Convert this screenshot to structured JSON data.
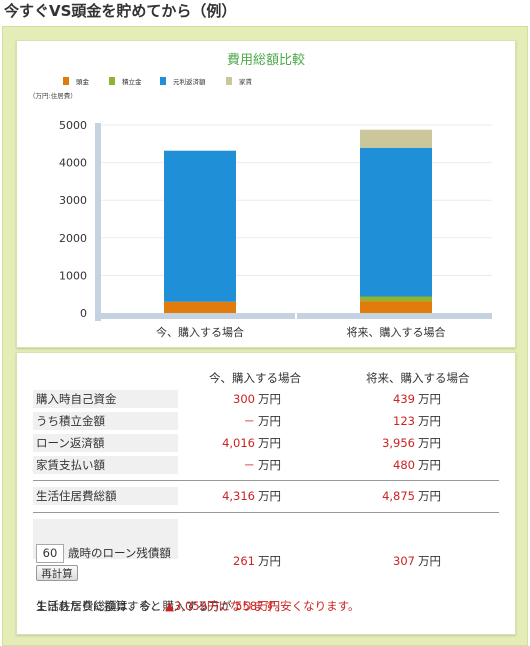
{
  "page_title": "今すぐVS頭金を貯めてから（例）",
  "colors": {
    "downpayment": "#e07b0c",
    "savings": "#8db530",
    "loan": "#1f90d8",
    "rent": "#cbc79a",
    "accent_red": "#cc2222"
  },
  "chart_data": {
    "type": "bar",
    "title": "費用総額比較",
    "ylabel": "（万円:住居費）",
    "xlabel": "",
    "categories": [
      "今、購入する場合",
      "将来、購入する場合"
    ],
    "ylim": [
      0,
      5000
    ],
    "yticks": [
      0,
      1000,
      2000,
      3000,
      4000,
      5000
    ],
    "legend_position": "top-left",
    "stacked": true,
    "series": [
      {
        "name": "頭金",
        "color": "#e07b0c",
        "values": [
          300,
          316
        ]
      },
      {
        "name": "積立金",
        "color": "#8db530",
        "values": [
          0,
          123
        ]
      },
      {
        "name": "元利返済額",
        "color": "#1f90d8",
        "values": [
          4016,
          3956
        ]
      },
      {
        "name": "家賃",
        "color": "#cbc79a",
        "values": [
          0,
          480
        ]
      }
    ]
  },
  "table": {
    "col_headers": [
      "今、購入する場合",
      "将来、購入する場合"
    ],
    "unit": "万円",
    "rows": [
      {
        "label": "購入時自己資金",
        "now": "300",
        "future": "439"
      },
      {
        "label": "うち積立金額",
        "now": "－",
        "future": "123"
      },
      {
        "label": "ローン返済額",
        "now": "4,016",
        "future": "3,956"
      },
      {
        "label": "家賃支払い額",
        "now": "－",
        "future": "480"
      }
    ],
    "total": {
      "label": "生活住居費総額",
      "now": "4,316",
      "future": "4,875"
    },
    "balance": {
      "age_value": "60",
      "label": "歳時のローン残債額",
      "now": "261",
      "future": "307",
      "recalc_label": "再計算"
    }
  },
  "summary": {
    "line1_prefix": "生活住居費総額は、今、購入する方が",
    "line1_value": "558万円安くなります。",
    "line2_prefix": "１日あたりに換算すると",
    "line2_value": "▲3,059円になります。"
  }
}
